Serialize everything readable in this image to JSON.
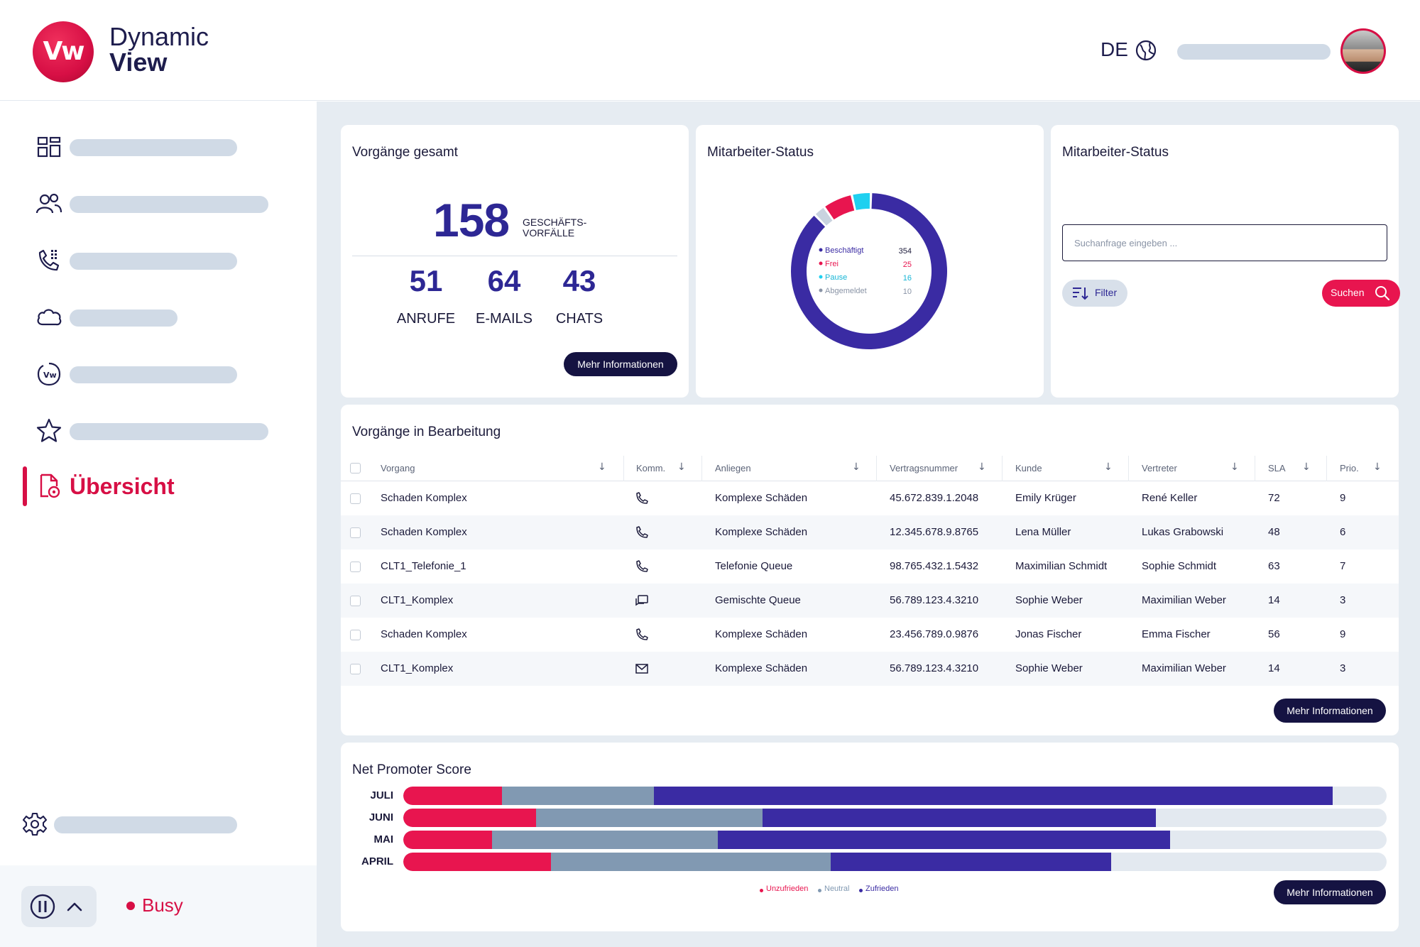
{
  "app": {
    "logo_mark": "Vw",
    "logo_line1": "Dynamic",
    "logo_line2": "View",
    "language": "DE"
  },
  "sidebar": {
    "items": [
      {
        "icon": "dashboard-grid-icon"
      },
      {
        "icon": "users-icon"
      },
      {
        "icon": "phone-dialpad-icon"
      },
      {
        "icon": "cloud-icon"
      },
      {
        "icon": "vw-badge-icon"
      },
      {
        "icon": "star-icon"
      },
      {
        "icon": "document-overview-icon",
        "label": "Übersicht",
        "active": true
      }
    ],
    "settings_icon": "gear-icon",
    "status_label": "Busy"
  },
  "vorgaenge_gesamt": {
    "title": "Vorgänge gesamt",
    "total": "158",
    "total_label_1": "GESCHÄFTS-",
    "total_label_2": "VORFÄLLE",
    "stats": [
      {
        "value": "51",
        "label": "ANRUFE"
      },
      {
        "value": "64",
        "label": "E-MAILS"
      },
      {
        "value": "43",
        "label": "CHATS"
      }
    ],
    "more_button": "Mehr Informationen"
  },
  "mitarbeiter_status_chart": {
    "title": "Mitarbeiter-Status"
  },
  "chart_data": {
    "type": "pie",
    "variant": "donut",
    "labels": [
      "Beschäftigt",
      "Frei",
      "Pause",
      "Abgemeldet"
    ],
    "values": [
      354,
      25,
      16,
      10
    ],
    "colors": [
      "#3a2ba3",
      "#e8154f",
      "#1fd0f0",
      "#c9d3df"
    ]
  },
  "mitarbeiter_status_search": {
    "title": "Mitarbeiter-Status",
    "search_placeholder": "Suchanfrage eingeben ...",
    "filter_label": "Filter",
    "search_label": "Suchen"
  },
  "table": {
    "title": "Vorgänge in Bearbeitung",
    "columns": [
      "Vorgang",
      "Komm.",
      "Anliegen",
      "Vertragsnummer",
      "Kunde",
      "Vertreter",
      "SLA",
      "Prio."
    ],
    "rows": [
      {
        "vorgang": "Schaden Komplex",
        "komm": "phone",
        "anliegen": "Komplexe Schäden",
        "vertragsnummer": "45.672.839.1.2048",
        "kunde": "Emily Krüger",
        "vertreter": "René Keller",
        "sla": "72",
        "prio": "9"
      },
      {
        "vorgang": "Schaden Komplex",
        "komm": "phone",
        "anliegen": "Komplexe Schäden",
        "vertragsnummer": "12.345.678.9.8765",
        "kunde": "Lena Müller",
        "vertreter": "Lukas Grabowski",
        "sla": "48",
        "prio": "6"
      },
      {
        "vorgang": "CLT1_Telefonie_1",
        "komm": "phone",
        "anliegen": "Telefonie Queue",
        "vertragsnummer": "98.765.432.1.5432",
        "kunde": "Maximilian Schmidt",
        "vertreter": "Sophie Schmidt",
        "sla": "63",
        "prio": "7"
      },
      {
        "vorgang": "CLT1_Komplex",
        "komm": "chat",
        "anliegen": "Gemischte Queue",
        "vertragsnummer": "56.789.123.4.3210",
        "kunde": "Sophie Weber",
        "vertreter": "Maximilian Weber",
        "sla": "14",
        "prio": "3"
      },
      {
        "vorgang": "Schaden Komplex",
        "komm": "phone",
        "anliegen": "Komplexe Schäden",
        "vertragsnummer": "23.456.789.0.9876",
        "kunde": "Jonas Fischer",
        "vertreter": "Emma Fischer",
        "sla": "56",
        "prio": "9"
      },
      {
        "vorgang": "CLT1_Komplex",
        "komm": "mail",
        "anliegen": "Komplexe Schäden",
        "vertragsnummer": "56.789.123.4.3210",
        "kunde": "Sophie Weber",
        "vertreter": "Maximilian Weber",
        "sla": "14",
        "prio": "3"
      }
    ],
    "more_button": "Mehr Informationen"
  },
  "nps": {
    "title": "Net Promoter Score",
    "months": [
      "JULI",
      "JUNI",
      "MAI",
      "APRIL"
    ],
    "unzufrieden": [
      0.1,
      0.135,
      0.09,
      0.15
    ],
    "neutral": [
      0.155,
      0.23,
      0.23,
      0.285
    ],
    "zufrieden": [
      0.69,
      0.4,
      0.46,
      0.285
    ],
    "legend": [
      "Unzufrieden",
      "Neutral",
      "Zufrieden"
    ],
    "colors": [
      "#e8154f",
      "#8199b2",
      "#3a2ba3"
    ],
    "more_button": "Mehr Informationen"
  }
}
